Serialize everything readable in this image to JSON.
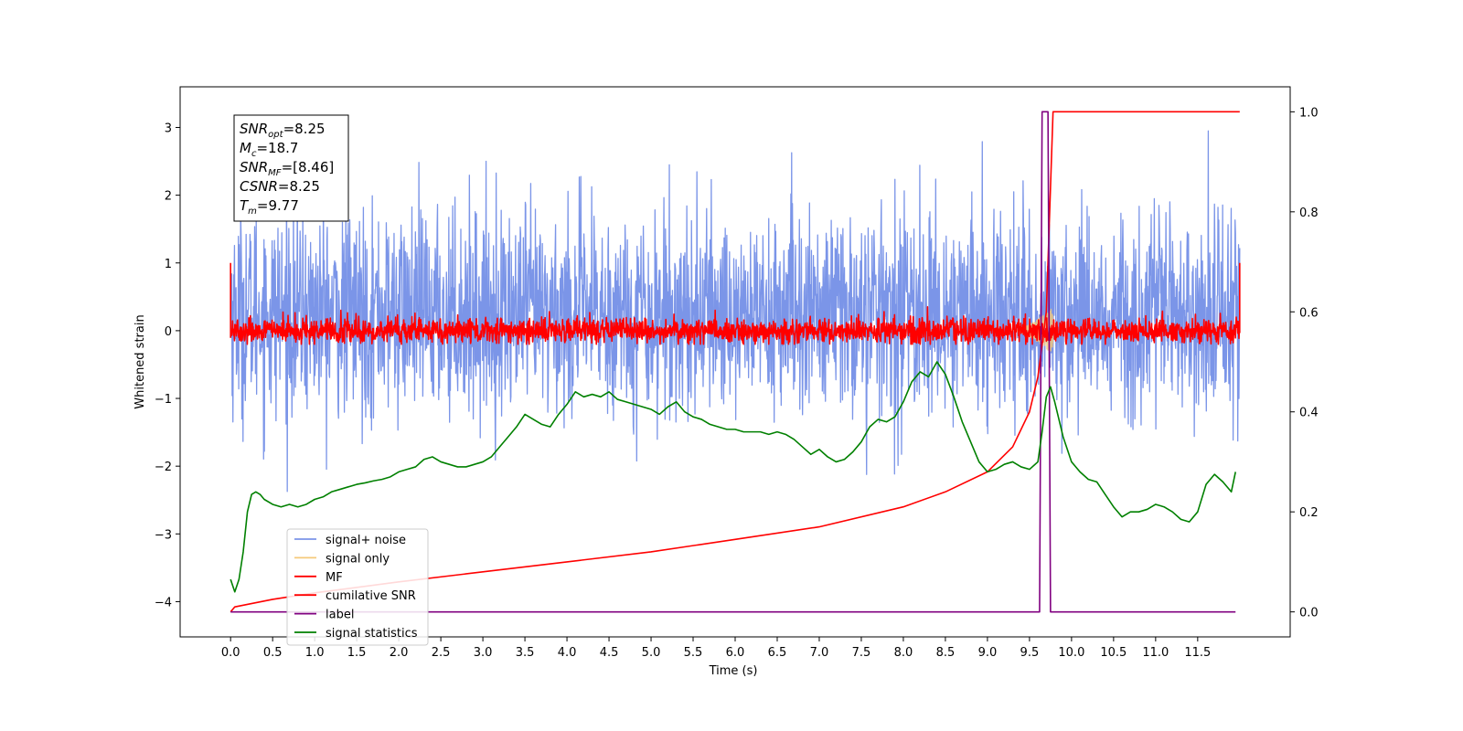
{
  "chart_data": {
    "type": "line",
    "xlabel": "Time (s)",
    "ylabel": "Whitened strain",
    "xlim": [
      -0.6,
      12.6
    ],
    "ylim": [
      -4.52,
      3.6
    ],
    "y2lim": [
      -0.05,
      1.05
    ],
    "xticks": [
      "0.0",
      "0.5",
      "1.0",
      "1.5",
      "2.0",
      "2.5",
      "3.0",
      "3.5",
      "4.0",
      "4.5",
      "5.0",
      "5.5",
      "6.0",
      "6.5",
      "7.0",
      "7.5",
      "8.0",
      "8.5",
      "9.0",
      "9.5",
      "10.0",
      "10.5",
      "11.0",
      "11.5"
    ],
    "xtick_values": [
      0,
      0.5,
      1,
      1.5,
      2,
      2.5,
      3,
      3.5,
      4,
      4.5,
      5,
      5.5,
      6,
      6.5,
      7,
      7.5,
      8,
      8.5,
      9,
      9.5,
      10,
      10.5,
      11,
      11.5
    ],
    "yticks": [
      "−4",
      "−3",
      "−2",
      "−1",
      "0",
      "1",
      "2",
      "3"
    ],
    "ytick_values": [
      -4,
      -3,
      -2,
      -1,
      0,
      1,
      2,
      3
    ],
    "y2ticks": [
      "0.0",
      "0.2",
      "0.4",
      "0.6",
      "0.8",
      "1.0"
    ],
    "y2tick_values": [
      0,
      0.2,
      0.4,
      0.6,
      0.8,
      1.0
    ],
    "grid": false,
    "legend_position": "lower-left",
    "annotation": {
      "lines": [
        {
          "main": "SNR",
          "sub": "opt",
          "value": "=8.25"
        },
        {
          "main": "M",
          "sub": "c",
          "value": "=18.7"
        },
        {
          "main": "SNR",
          "sub": "MF",
          "value": "=[8.46]"
        },
        {
          "main": "CSNR",
          "sub": "",
          "value": "=8.25"
        },
        {
          "main": "T",
          "sub": "m",
          "value": "=9.77"
        }
      ]
    },
    "series": [
      {
        "name": "signal+ noise",
        "color": "#7b95e8",
        "axis": "left",
        "style": "noise",
        "x_range": [
          0,
          12
        ],
        "mean": 0.25,
        "sd": 0.75,
        "min": -3.1,
        "max": 3.27
      },
      {
        "name": "signal only",
        "color": "#f5c97a",
        "axis": "left",
        "style": "burst",
        "x_range": [
          9.3,
          9.78
        ],
        "amplitude": 0.35
      },
      {
        "name": "MF",
        "color": "#ff0000",
        "axis": "left",
        "style": "noise",
        "x_range": [
          0,
          12
        ],
        "mean": 0.0,
        "sd": 0.09,
        "min": -0.2,
        "max": 0.5,
        "end_points": [
          [
            0,
            1.0
          ],
          [
            12,
            1.0
          ]
        ]
      },
      {
        "name": "cumilative SNR",
        "color": "#ff0000",
        "axis": "right",
        "x": [
          0,
          0.05,
          0.5,
          1,
          2,
          3,
          4,
          5,
          6,
          7,
          8,
          8.5,
          9,
          9.3,
          9.5,
          9.6,
          9.7,
          9.75,
          9.78,
          12
        ],
        "y": [
          0.0,
          0.01,
          0.025,
          0.038,
          0.06,
          0.08,
          0.1,
          0.12,
          0.145,
          0.17,
          0.21,
          0.24,
          0.28,
          0.33,
          0.4,
          0.47,
          0.6,
          0.85,
          1.0,
          1.0
        ]
      },
      {
        "name": "label",
        "color": "#800080",
        "axis": "right",
        "x": [
          0,
          9.62,
          9.65,
          9.72,
          9.75,
          11.95
        ],
        "y": [
          0,
          0,
          1,
          1,
          0,
          0
        ]
      },
      {
        "name": "signal statistics",
        "color": "#008000",
        "axis": "right",
        "x": [
          0,
          0.05,
          0.1,
          0.15,
          0.2,
          0.25,
          0.3,
          0.35,
          0.4,
          0.5,
          0.6,
          0.7,
          0.8,
          0.9,
          1.0,
          1.1,
          1.2,
          1.3,
          1.4,
          1.5,
          1.6,
          1.7,
          1.8,
          1.9,
          2.0,
          2.1,
          2.2,
          2.3,
          2.4,
          2.5,
          2.6,
          2.7,
          2.8,
          2.9,
          3.0,
          3.1,
          3.2,
          3.3,
          3.4,
          3.5,
          3.6,
          3.7,
          3.8,
          3.9,
          4.0,
          4.1,
          4.2,
          4.3,
          4.4,
          4.5,
          4.6,
          4.7,
          4.8,
          4.9,
          5.0,
          5.1,
          5.2,
          5.3,
          5.4,
          5.5,
          5.6,
          5.7,
          5.8,
          5.9,
          6.0,
          6.1,
          6.2,
          6.3,
          6.4,
          6.5,
          6.6,
          6.7,
          6.8,
          6.9,
          7.0,
          7.1,
          7.2,
          7.3,
          7.4,
          7.5,
          7.6,
          7.7,
          7.8,
          7.9,
          8.0,
          8.1,
          8.2,
          8.3,
          8.4,
          8.5,
          8.6,
          8.7,
          8.8,
          8.9,
          9.0,
          9.1,
          9.2,
          9.3,
          9.4,
          9.5,
          9.6,
          9.65,
          9.7,
          9.75,
          9.8,
          9.9,
          10.0,
          10.1,
          10.2,
          10.3,
          10.4,
          10.5,
          10.6,
          10.7,
          10.8,
          10.9,
          11.0,
          11.1,
          11.2,
          11.3,
          11.4,
          11.5,
          11.6,
          11.7,
          11.8,
          11.9,
          11.95
        ],
        "y": [
          0.065,
          0.04,
          0.065,
          0.12,
          0.2,
          0.235,
          0.24,
          0.235,
          0.225,
          0.215,
          0.21,
          0.215,
          0.21,
          0.215,
          0.225,
          0.23,
          0.24,
          0.245,
          0.25,
          0.255,
          0.258,
          0.262,
          0.265,
          0.27,
          0.28,
          0.285,
          0.29,
          0.305,
          0.31,
          0.3,
          0.295,
          0.29,
          0.29,
          0.295,
          0.3,
          0.31,
          0.33,
          0.35,
          0.37,
          0.395,
          0.385,
          0.375,
          0.37,
          0.395,
          0.415,
          0.44,
          0.43,
          0.435,
          0.43,
          0.44,
          0.425,
          0.42,
          0.415,
          0.41,
          0.405,
          0.395,
          0.41,
          0.42,
          0.4,
          0.39,
          0.385,
          0.375,
          0.37,
          0.365,
          0.365,
          0.36,
          0.36,
          0.36,
          0.355,
          0.36,
          0.355,
          0.345,
          0.33,
          0.315,
          0.325,
          0.31,
          0.3,
          0.305,
          0.32,
          0.34,
          0.37,
          0.385,
          0.38,
          0.39,
          0.42,
          0.46,
          0.48,
          0.47,
          0.5,
          0.475,
          0.43,
          0.38,
          0.34,
          0.3,
          0.28,
          0.285,
          0.295,
          0.3,
          0.29,
          0.285,
          0.3,
          0.36,
          0.43,
          0.45,
          0.42,
          0.35,
          0.3,
          0.28,
          0.265,
          0.26,
          0.235,
          0.21,
          0.19,
          0.2,
          0.2,
          0.205,
          0.215,
          0.21,
          0.2,
          0.185,
          0.18,
          0.2,
          0.255,
          0.275,
          0.26,
          0.24,
          0.28
        ]
      }
    ]
  }
}
